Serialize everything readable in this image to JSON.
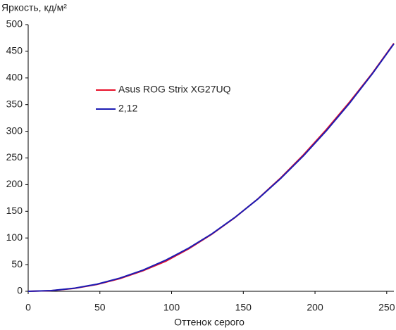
{
  "chart_data": {
    "type": "line",
    "y_label": "Яркость, кд/м²",
    "x_label": "Оттенок серого",
    "x": [
      0,
      16,
      32,
      48,
      64,
      80,
      96,
      112,
      128,
      144,
      160,
      176,
      192,
      208,
      224,
      240,
      255
    ],
    "series": [
      {
        "name": "Asus ROG Strix XG27UQ",
        "color": "#e8102a",
        "values": [
          0,
          1.2,
          5.5,
          12.8,
          23.8,
          38.5,
          56.5,
          79.8,
          107,
          138,
          173,
          212.5,
          256,
          303.5,
          354.5,
          409,
          465
        ]
      },
      {
        "name": "2,12",
        "color": "#1c1cb4",
        "values": [
          0,
          1.3,
          5.7,
          13.4,
          24.8,
          39.7,
          58.5,
          81.1,
          107.6,
          138.2,
          172.7,
          211.4,
          254.2,
          301.3,
          352.5,
          408,
          464
        ]
      }
    ],
    "xlim": [
      0,
      255
    ],
    "xticks": [
      0,
      50,
      100,
      150,
      200,
      250
    ],
    "ylim": [
      0,
      500
    ],
    "yticks": [
      0,
      50,
      100,
      150,
      200,
      250,
      300,
      350,
      400,
      450,
      500
    ],
    "grid": false
  }
}
